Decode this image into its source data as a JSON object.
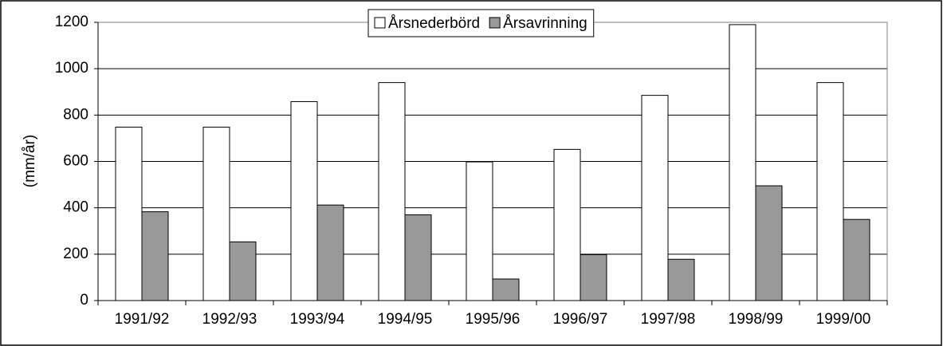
{
  "chart_data": {
    "type": "bar",
    "y_label": "(mm/år)",
    "categories": [
      "1991/92",
      "1992/93",
      "1993/94",
      "1994/95",
      "1995/96",
      "1996/97",
      "1997/98",
      "1998/99",
      "1999/00"
    ],
    "series": [
      {
        "name": "Årsnederbörd",
        "color": "#ffffff",
        "values": [
          748,
          748,
          858,
          940,
          598,
          652,
          885,
          1190,
          940
        ]
      },
      {
        "name": "Årsavrinning",
        "color": "#999999",
        "values": [
          383,
          253,
          412,
          370,
          93,
          198,
          178,
          495,
          350
        ]
      }
    ],
    "ylim": [
      0,
      1200
    ],
    "yticks": [
      0,
      200,
      400,
      600,
      800,
      1000,
      1200
    ],
    "grid": true,
    "legend": "top"
  }
}
